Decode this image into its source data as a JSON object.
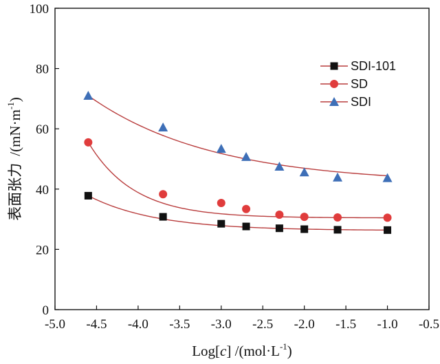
{
  "chart_data": {
    "type": "scatter",
    "xlabel": {
      "prefix": "Log[",
      "var": "c",
      "suffix": "] /(mol·L",
      "sup": "-1",
      "end": ")"
    },
    "ylabel": {
      "cn": "表面张力",
      "unit": "/(mN·m",
      "sup": "-1",
      "end": ")"
    },
    "xlim": [
      -5.0,
      -0.5
    ],
    "ylim": [
      0,
      100
    ],
    "xticks": [
      "-5.0",
      "-4.5",
      "-4.0",
      "-3.5",
      "-3.0",
      "-2.5",
      "-2.0",
      "-1.5",
      "-1.0",
      "-0.5"
    ],
    "yticks": [
      "0",
      "20",
      "40",
      "60",
      "80",
      "100"
    ],
    "grid": false,
    "legend_position": "top-right",
    "fit_line_color": "#b83b3b",
    "series": [
      {
        "name": "SDI-101",
        "marker": "square",
        "color": "#111111",
        "x": [
          -4.6,
          -3.7,
          -3.0,
          -2.7,
          -2.3,
          -2.0,
          -1.6,
          -1.0
        ],
        "y": [
          37.8,
          30.8,
          28.5,
          27.6,
          27.0,
          26.7,
          26.5,
          26.4
        ],
        "fit": {
          "a": 26.26,
          "b": 11.54,
          "k": 1.23
        }
      },
      {
        "name": "SD",
        "marker": "circle",
        "color": "#e03c3c",
        "x": [
          -4.6,
          -3.7,
          -3.0,
          -2.7,
          -2.3,
          -2.0,
          -1.6,
          -1.0
        ],
        "y": [
          55.5,
          38.3,
          35.4,
          33.4,
          31.5,
          30.8,
          30.6,
          30.5
        ],
        "fit": {
          "a": 30.44,
          "b": 25.06,
          "k": 1.82
        }
      },
      {
        "name": "SDI",
        "marker": "triangle",
        "color": "#3e6fb7",
        "x": [
          -4.6,
          -3.7,
          -3.0,
          -2.7,
          -2.3,
          -2.0,
          -1.6,
          -1.0
        ],
        "y": [
          71.0,
          60.5,
          53.4,
          50.7,
          47.5,
          45.6,
          43.9,
          43.7
        ],
        "fit": {
          "a": 41.8,
          "b": 29.2,
          "k": 0.67
        }
      }
    ]
  }
}
